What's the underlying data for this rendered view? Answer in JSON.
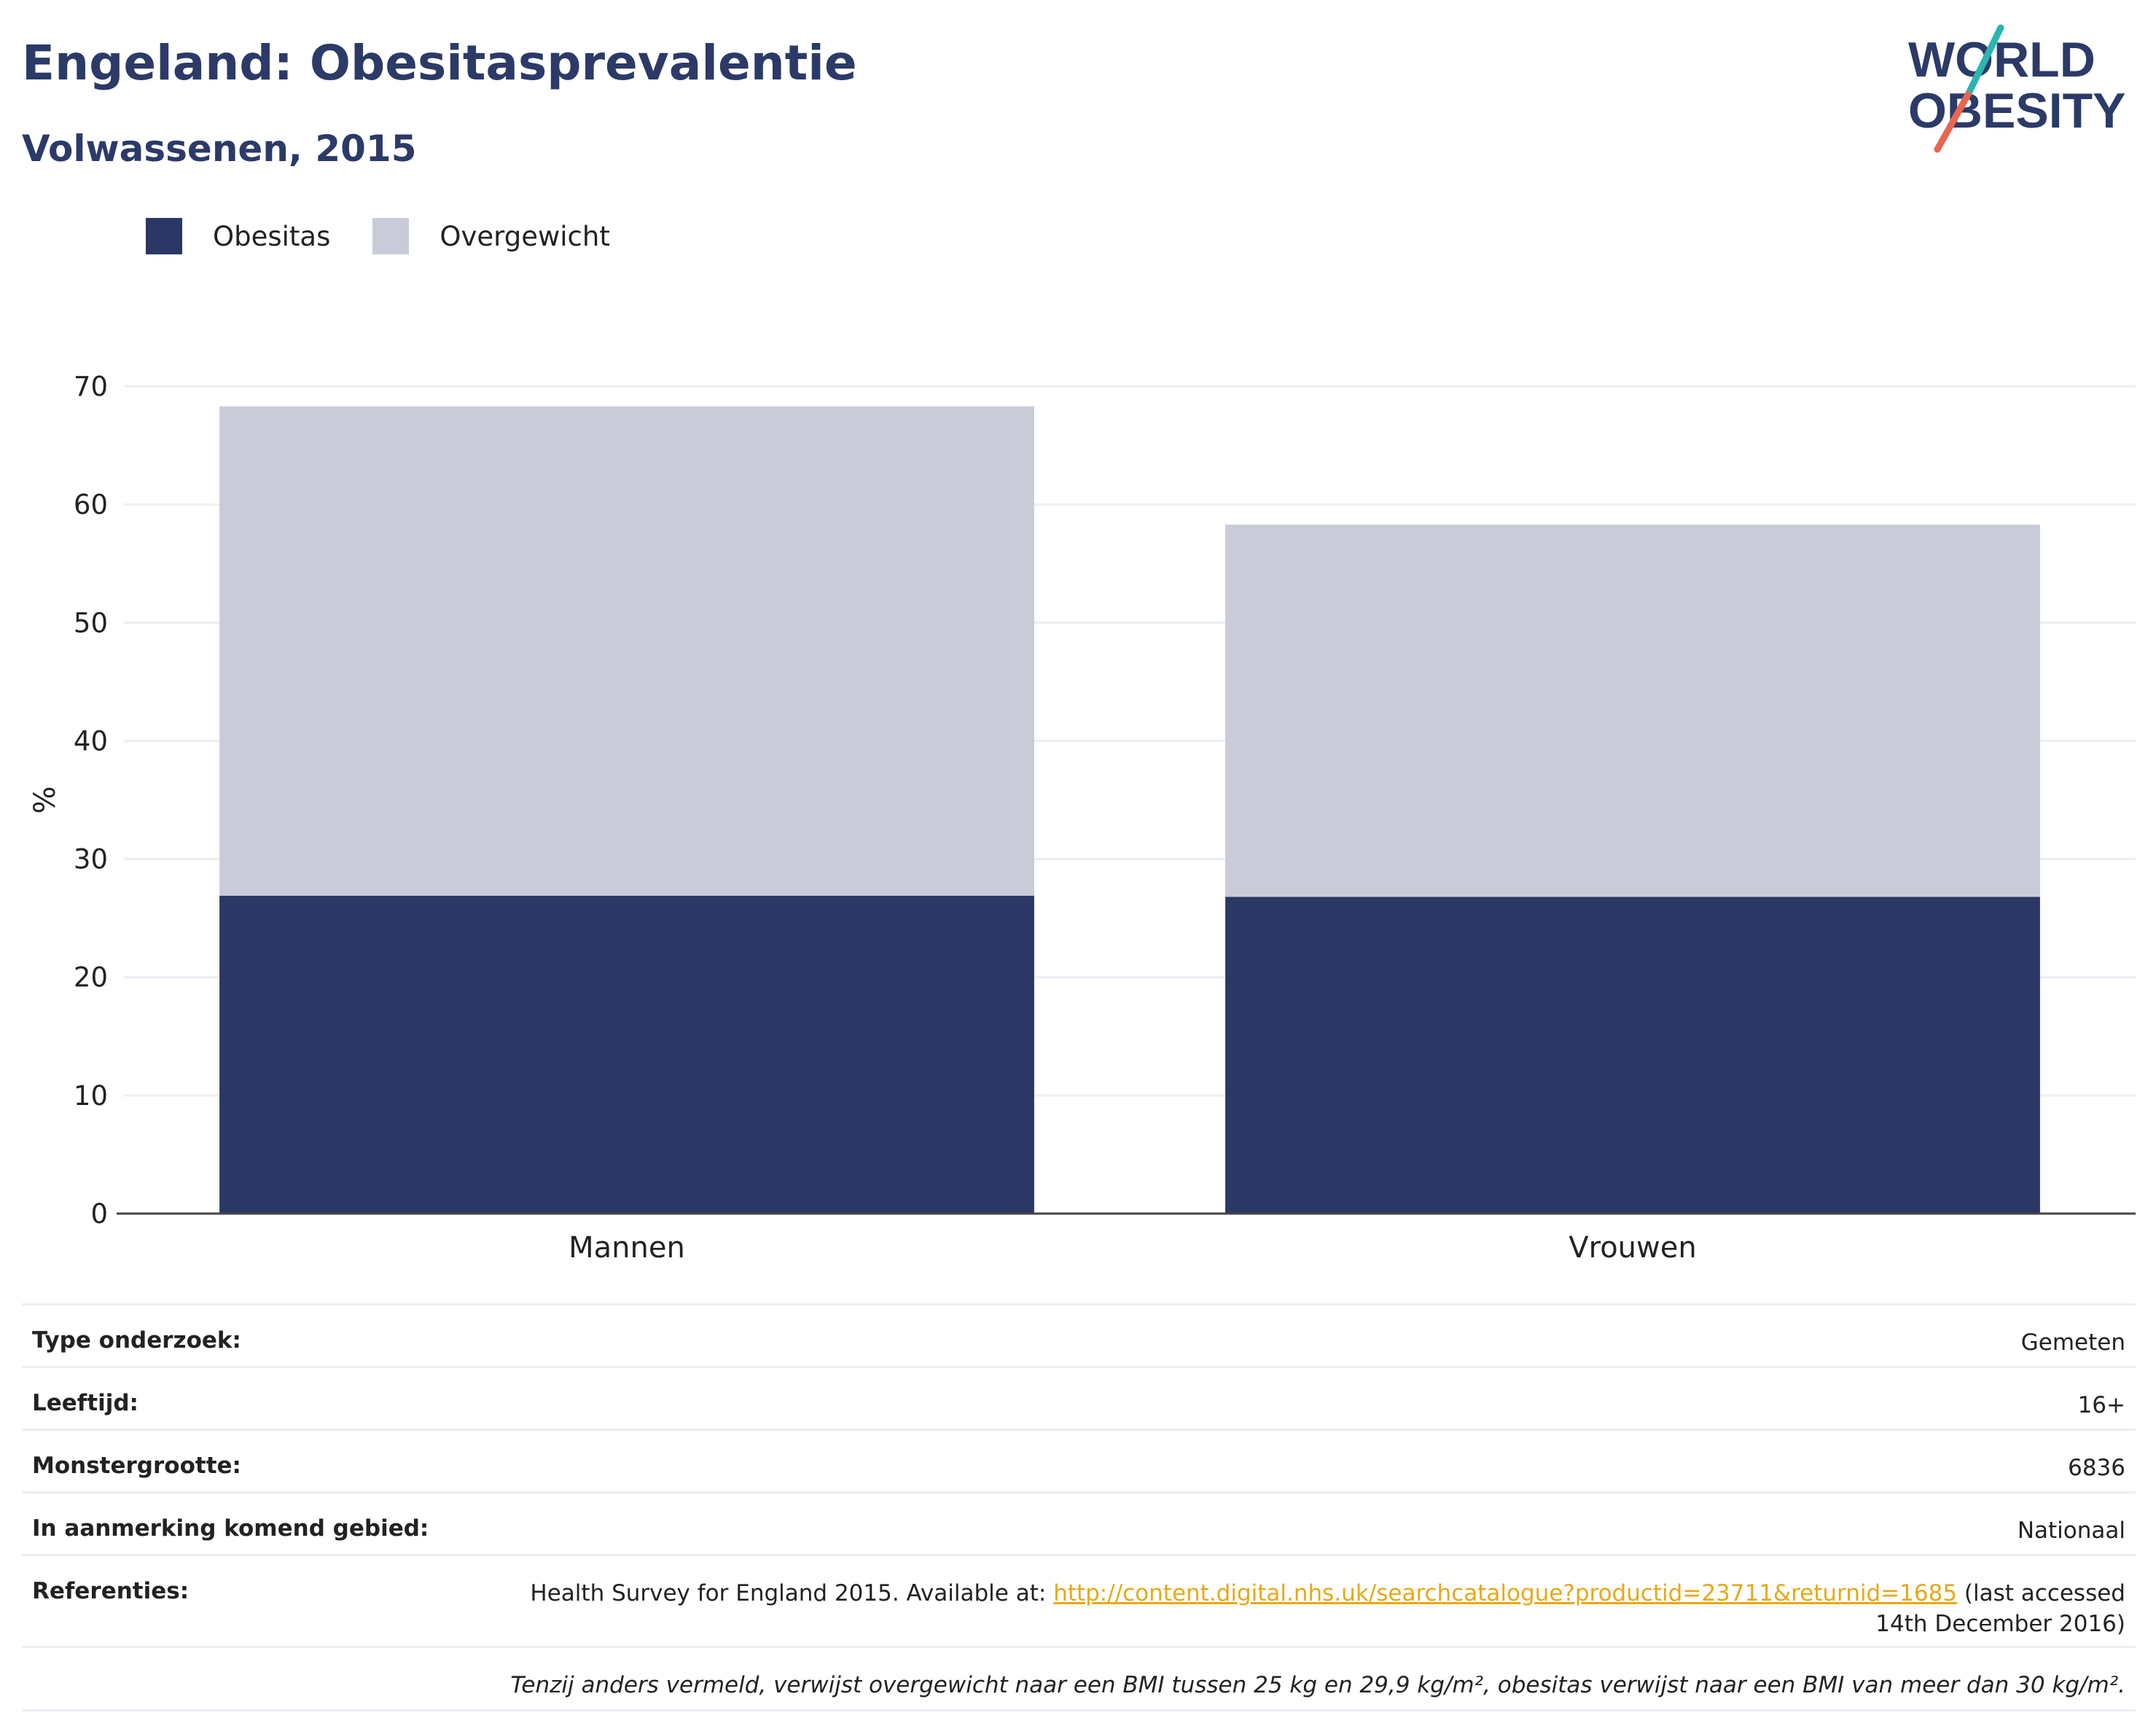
{
  "header": {
    "title": "Engeland: Obesitasprevalentie",
    "subtitle": "Volwassenen, 2015"
  },
  "logo": {
    "line1": "WORLD",
    "line2": "OBESITY",
    "colors": {
      "text": "#2b3a67",
      "slash_top": "#2bb5b0",
      "slash_bottom": "#e8664f"
    }
  },
  "legend": [
    {
      "label": "Obesitas",
      "color": "#2b3764"
    },
    {
      "label": "Overgewicht",
      "color": "#c9ccd8"
    }
  ],
  "chart_data": {
    "type": "bar",
    "stacked": true,
    "categories": [
      "Mannen",
      "Vrouwen"
    ],
    "series": [
      {
        "name": "Obesitas",
        "values": [
          26.9,
          26.8
        ],
        "color": "#2b3764"
      },
      {
        "name": "Overgewicht",
        "values": [
          41.4,
          31.5
        ],
        "color": "#c9ccd8"
      }
    ],
    "ylabel": "%",
    "xlabel": "",
    "ylim": [
      0,
      70
    ],
    "yticks": [
      0,
      10,
      20,
      30,
      40,
      50,
      60,
      70
    ],
    "grid": true,
    "legend_position": "top-left"
  },
  "info": {
    "rows": [
      {
        "key": "Type onderzoek:",
        "value": "Gemeten"
      },
      {
        "key": "Leeftijd:",
        "value": "16+"
      },
      {
        "key": "Monstergrootte:",
        "value": "6836"
      },
      {
        "key": "In aanmerking komend gebied:",
        "value": "Nationaal"
      }
    ],
    "reference": {
      "key": "Referenties:",
      "before": "Health Survey for England 2015. Available at: ",
      "link": "http://content.digital.nhs.uk/searchcatalogue?productid=23711&returnid=1685",
      "after": " (last accessed 14th December 2016)"
    },
    "note": "Tenzij anders vermeld, verwijst overgewicht naar een BMI tussen 25 kg en 29,9 kg/m², obesitas verwijst naar een BMI van meer dan 30 kg/m²."
  }
}
